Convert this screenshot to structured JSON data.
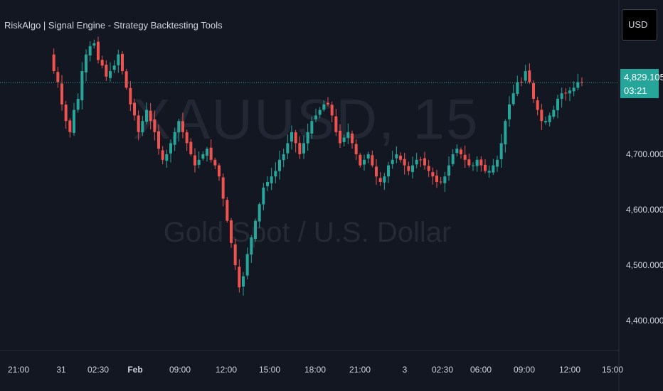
{
  "indicator_title": "RiskAlgo | Signal Engine - Strategy Backtesting Tools",
  "currency_label": "USD",
  "watermark": {
    "symbol": "XAUUSD, 15",
    "description": "Gold Spot / U.S. Dollar"
  },
  "last_price": {
    "value": "4,829.105",
    "countdown": "03:21",
    "color": "#26a69a"
  },
  "colors": {
    "background": "#131722",
    "up": "#26a69a",
    "down": "#ef5350",
    "axis_text": "#d1d4dc"
  },
  "chart_data": {
    "type": "candlestick",
    "y_ticks": [
      "4,700.000",
      "4,600.000",
      "4,500.000",
      "4,400.000"
    ],
    "x_ticks": [
      "21:00",
      "31",
      "02:30",
      "Feb",
      "09:00",
      "12:00",
      "15:00",
      "18:00",
      "21:00",
      "3",
      "02:30",
      "06:00",
      "09:00",
      "12:00",
      "15:00"
    ],
    "ylim": [
      4360,
      4960
    ],
    "last_price": 4829.105,
    "price_series": [
      4880,
      4850,
      4830,
      4790,
      4760,
      4740,
      4780,
      4800,
      4850,
      4880,
      4895,
      4900,
      4870,
      4860,
      4840,
      4850,
      4860,
      4880,
      4850,
      4820,
      4790,
      4770,
      4740,
      4760,
      4780,
      4760,
      4740,
      4710,
      4690,
      4700,
      4720,
      4740,
      4760,
      4740,
      4720,
      4700,
      4680,
      4690,
      4700,
      4710,
      4690,
      4680,
      4660,
      4620,
      4580,
      4540,
      4500,
      4460,
      4480,
      4520,
      4550,
      4580,
      4610,
      4640,
      4650,
      4660,
      4670,
      4690,
      4700,
      4720,
      4740,
      4720,
      4700,
      4720,
      4740,
      4760,
      4770,
      4780,
      4790,
      4790,
      4770,
      4740,
      4720,
      4730,
      4740,
      4720,
      4700,
      4680,
      4690,
      4700,
      4680,
      4660,
      4650,
      4660,
      4680,
      4690,
      4700,
      4690,
      4680,
      4670,
      4680,
      4690,
      4690,
      4680,
      4670,
      4660,
      4650,
      4650,
      4660,
      4680,
      4700,
      4710,
      4700,
      4690,
      4680,
      4680,
      4690,
      4680,
      4670,
      4670,
      4680,
      4690,
      4720,
      4760,
      4790,
      4810,
      4830,
      4830,
      4850,
      4830,
      4800,
      4780,
      4760,
      4760,
      4770,
      4780,
      4800,
      4810,
      4810,
      4815,
      4820,
      4830,
      4829.105
    ]
  }
}
